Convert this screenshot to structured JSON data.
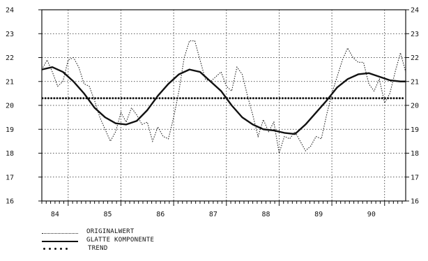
{
  "chart_data": {
    "type": "line",
    "title": "",
    "xlabel": "",
    "ylabel": "",
    "ylim": [
      16,
      24
    ],
    "xlim": [
      83.5,
      90.4
    ],
    "grid": true,
    "y_ticks": [
      "16",
      "17",
      "18",
      "19",
      "20",
      "21",
      "22",
      "23",
      "24"
    ],
    "x_tick_labels": [
      "84",
      "85",
      "86",
      "87",
      "88",
      "89",
      "90"
    ],
    "x_tick_positions": [
      83.75,
      84.75,
      85.75,
      86.75,
      87.75,
      88.75,
      89.75
    ],
    "series": [
      {
        "name": "ORIGINALWERT",
        "style": "dotted",
        "x": [
          83.5,
          83.6,
          83.7,
          83.8,
          83.9,
          84.0,
          84.1,
          84.2,
          84.3,
          84.4,
          84.5,
          84.6,
          84.7,
          84.8,
          84.9,
          85.0,
          85.1,
          85.2,
          85.3,
          85.4,
          85.5,
          85.6,
          85.7,
          85.8,
          85.9,
          86.0,
          86.1,
          86.2,
          86.3,
          86.4,
          86.5,
          86.6,
          86.7,
          86.8,
          86.9,
          87.0,
          87.1,
          87.2,
          87.3,
          87.4,
          87.5,
          87.6,
          87.7,
          87.8,
          87.9,
          88.0,
          88.1,
          88.2,
          88.3,
          88.4,
          88.5,
          88.6,
          88.7,
          88.8,
          88.9,
          89.0,
          89.1,
          89.2,
          89.3,
          89.4,
          89.5,
          89.6,
          89.7,
          89.8,
          89.9,
          90.0,
          90.1,
          90.2,
          90.3,
          90.4
        ],
        "y": [
          21.5,
          21.9,
          21.4,
          20.8,
          21.0,
          21.9,
          22.0,
          21.6,
          20.9,
          20.8,
          20.2,
          19.5,
          19.0,
          18.5,
          18.9,
          19.7,
          19.3,
          19.9,
          19.6,
          19.2,
          19.3,
          18.5,
          19.1,
          18.7,
          18.6,
          19.5,
          20.6,
          22.0,
          22.7,
          22.7,
          21.9,
          21.1,
          21.0,
          21.2,
          21.4,
          20.8,
          20.6,
          21.6,
          21.3,
          20.4,
          19.6,
          18.7,
          19.4,
          18.9,
          19.3,
          18.0,
          18.7,
          18.6,
          18.9,
          18.5,
          18.1,
          18.3,
          18.7,
          18.6,
          19.6,
          20.5,
          21.2,
          21.9,
          22.4,
          22.0,
          21.8,
          21.8,
          20.9,
          20.6,
          21.1,
          20.1,
          20.5,
          21.4,
          22.2,
          21.4
        ]
      },
      {
        "name": "GLATTE KOMPONENTE",
        "style": "solid",
        "x": [
          83.5,
          83.7,
          83.9,
          84.1,
          84.3,
          84.5,
          84.7,
          84.9,
          85.1,
          85.3,
          85.5,
          85.7,
          85.9,
          86.1,
          86.3,
          86.5,
          86.7,
          86.9,
          87.1,
          87.3,
          87.5,
          87.7,
          87.9,
          88.1,
          88.3,
          88.5,
          88.7,
          88.9,
          89.1,
          89.3,
          89.5,
          89.7,
          89.9,
          90.1,
          90.3,
          90.4
        ],
        "y": [
          21.5,
          21.6,
          21.4,
          21.0,
          20.5,
          19.9,
          19.5,
          19.25,
          19.2,
          19.35,
          19.8,
          20.4,
          20.9,
          21.3,
          21.5,
          21.4,
          21.0,
          20.6,
          20.0,
          19.5,
          19.2,
          19.0,
          18.95,
          18.85,
          18.8,
          19.2,
          19.7,
          20.2,
          20.75,
          21.1,
          21.3,
          21.35,
          21.2,
          21.05,
          21.0,
          21.0
        ]
      },
      {
        "name": "TREND",
        "style": "dots",
        "x": [
          83.5,
          90.4
        ],
        "y": [
          20.3,
          20.3
        ]
      }
    ],
    "legend_position": "bottom-left"
  }
}
